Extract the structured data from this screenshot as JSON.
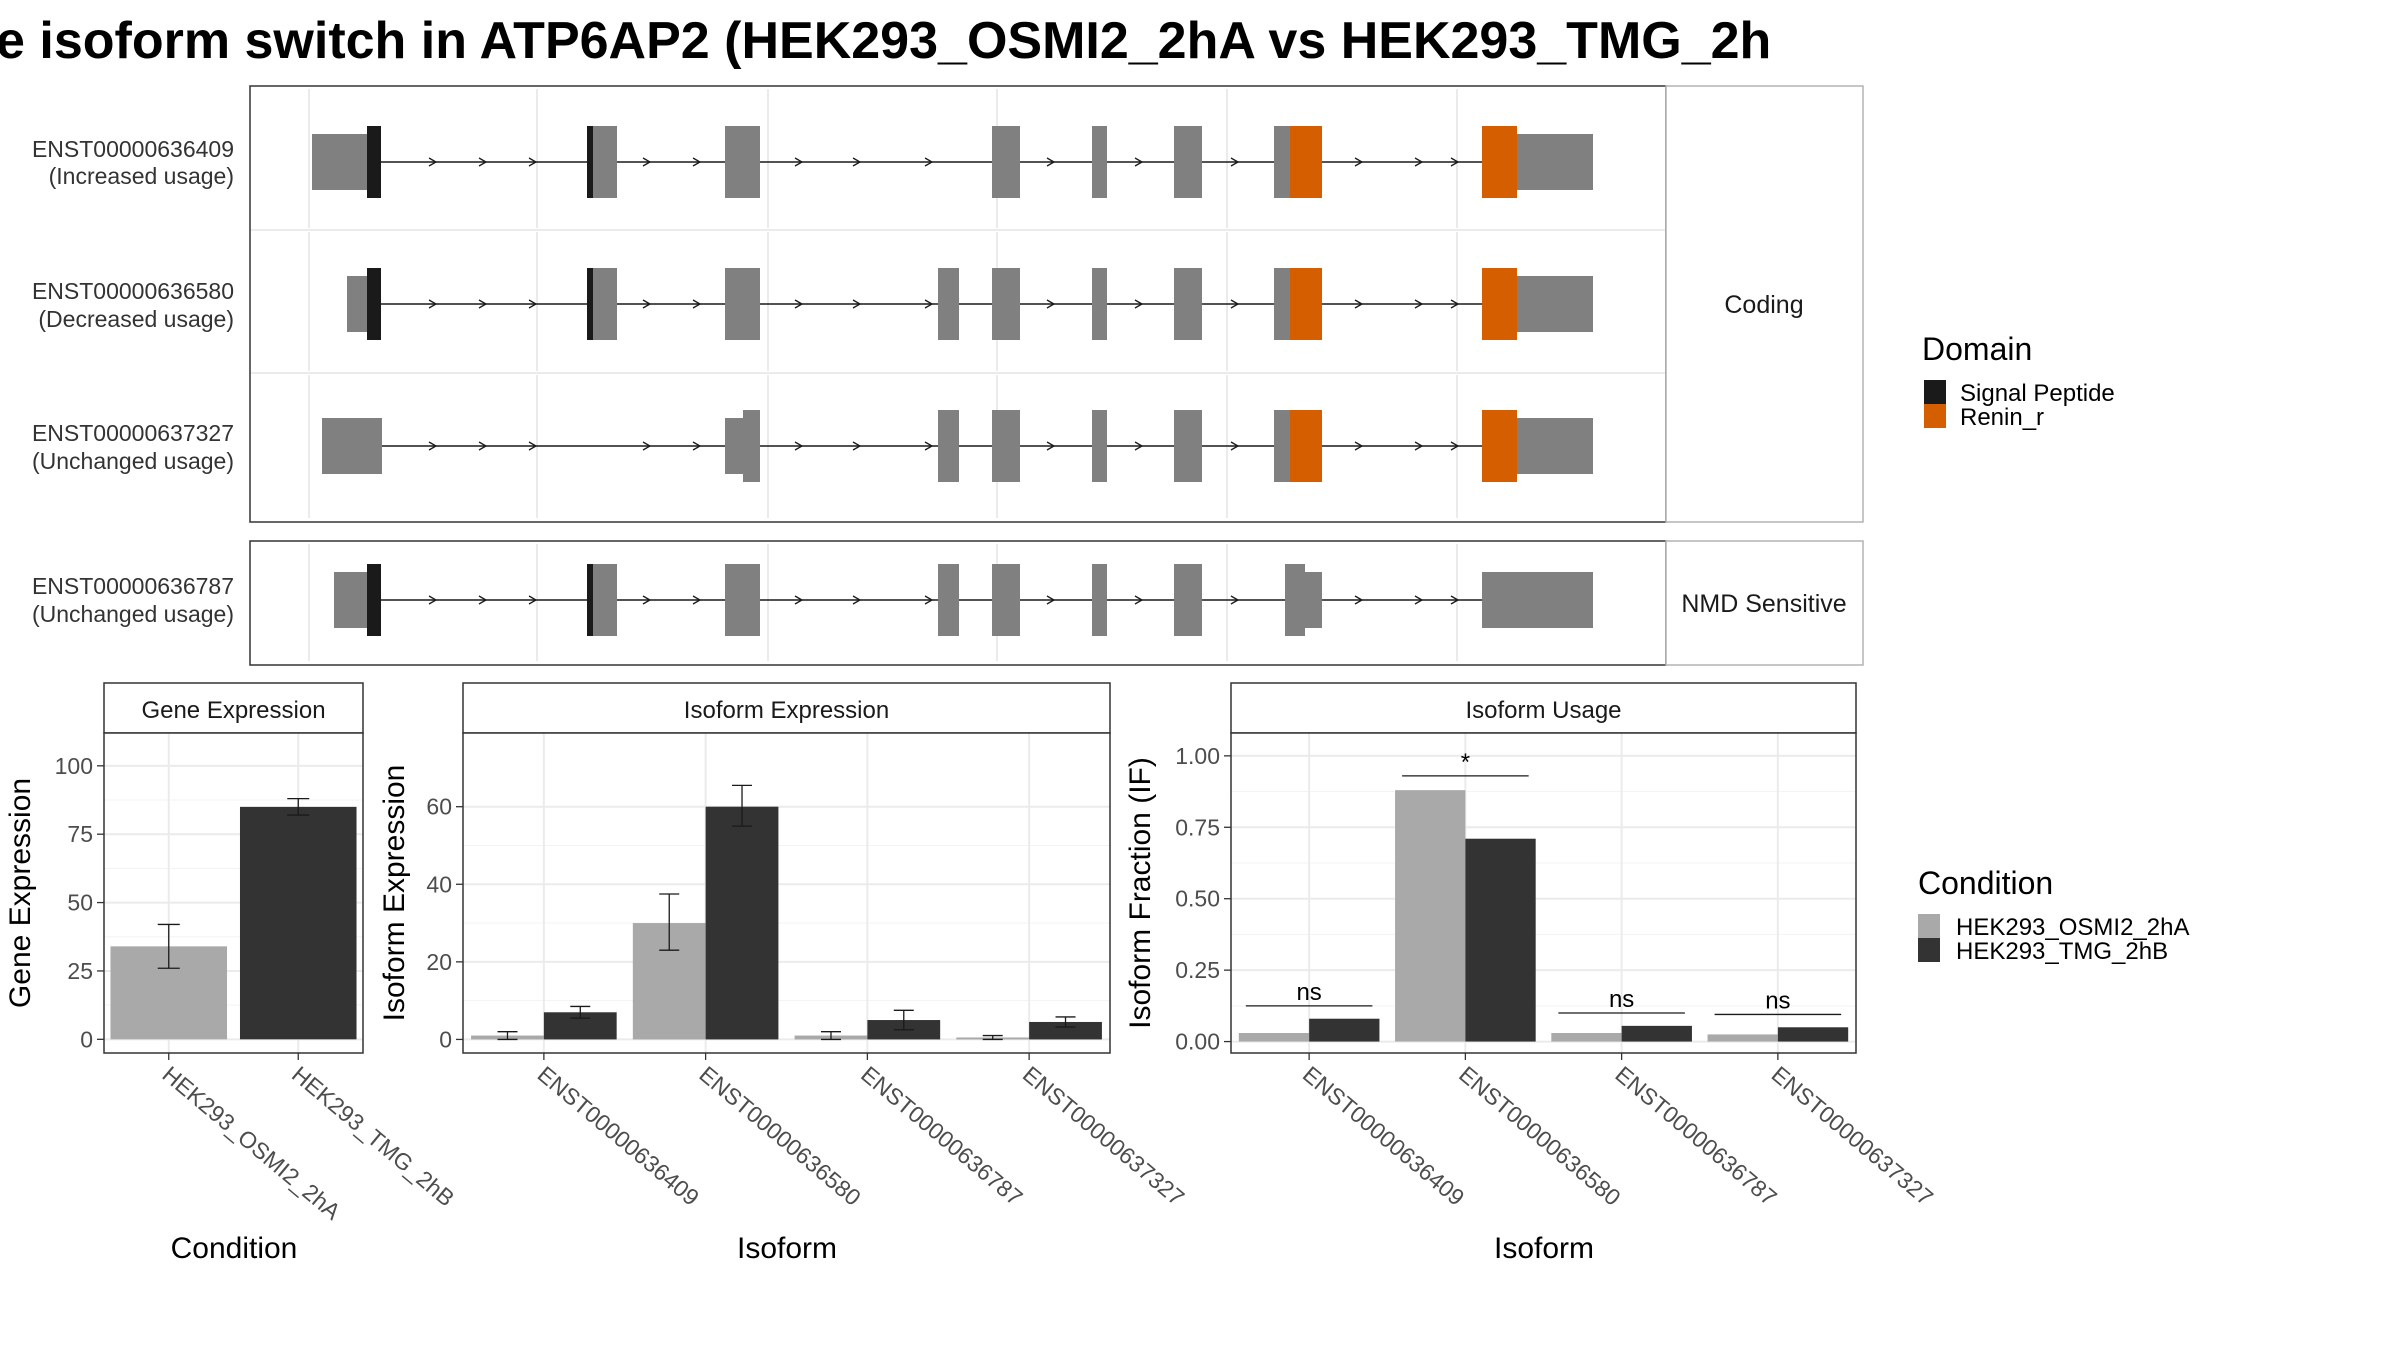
{
  "title": "e isoform switch in ATP6AP2 (HEK293_OSMI2_2hA vs HEK293_TMG_2h",
  "colors": {
    "signal_peptide": "#1a1a1a",
    "renin_r": "#D55E00",
    "exon": "#808080",
    "cond_a": "#a9a9a9",
    "cond_b": "#333333"
  },
  "transcripts": {
    "facets": [
      "Coding",
      "NMD Sensitive"
    ],
    "rows": [
      {
        "id": "ENST00000636409",
        "usage": "(Increased usage)",
        "facet": 0
      },
      {
        "id": "ENST00000636580",
        "usage": "(Decreased usage)",
        "facet": 0
      },
      {
        "id": "ENST00000637327",
        "usage": "(Unchanged usage)",
        "facet": 0
      },
      {
        "id": "ENST00000636787",
        "usage": "(Unchanged usage)",
        "facet": 1
      }
    ]
  },
  "domain_legend": {
    "title": "Domain",
    "items": [
      {
        "label": "Signal Peptide",
        "color": "#1a1a1a"
      },
      {
        "label": "Renin_r",
        "color": "#D55E00"
      }
    ]
  },
  "condition_legend": {
    "title": "Condition",
    "items": [
      {
        "label": "HEK293_OSMI2_2hA",
        "color": "#a9a9a9"
      },
      {
        "label": "HEK293_TMG_2hB",
        "color": "#333333"
      }
    ]
  },
  "chart_data": [
    {
      "type": "bar",
      "title": "Gene Expression",
      "xlabel": "Condition",
      "ylabel": "Gene Expression",
      "categories": [
        "HEK293_OSMI2_2hA",
        "HEK293_TMG_2hB"
      ],
      "values": [
        34,
        85
      ],
      "errors": [
        [
          26,
          42
        ],
        [
          82,
          88
        ]
      ],
      "ylim": [
        -5,
        112
      ],
      "yticks": [
        0,
        25,
        50,
        75,
        100
      ],
      "ytick_labels": [
        "0",
        "25",
        "50",
        "75",
        "100"
      ]
    },
    {
      "type": "bar",
      "title": "Isoform Expression",
      "xlabel": "Isoform",
      "ylabel": "Isoform Expression",
      "categories": [
        "ENST00000636409",
        "ENST00000636580",
        "ENST00000636787",
        "ENST00000637327"
      ],
      "series": [
        {
          "name": "HEK293_OSMI2_2hA",
          "values": [
            1,
            30,
            1,
            0.5
          ],
          "errors": [
            [
              0,
              2
            ],
            [
              23,
              37.5
            ],
            [
              0,
              2
            ],
            [
              0,
              1
            ]
          ]
        },
        {
          "name": "HEK293_TMG_2hB",
          "values": [
            7,
            60,
            5,
            4.5
          ],
          "errors": [
            [
              5.5,
              8.5
            ],
            [
              55,
              65.5
            ],
            [
              2.5,
              7.5
            ],
            [
              3.2,
              5.8
            ]
          ]
        }
      ],
      "ylim": [
        -3.5,
        79
      ],
      "yticks": [
        0,
        20,
        40,
        60
      ],
      "ytick_labels": [
        "0",
        "20",
        "40",
        "60"
      ]
    },
    {
      "type": "bar",
      "title": "Isoform Usage",
      "xlabel": "Isoform",
      "ylabel": "Isoform Fraction (IF)",
      "categories": [
        "ENST00000636409",
        "ENST00000636580",
        "ENST00000636787",
        "ENST00000637327"
      ],
      "series": [
        {
          "name": "HEK293_OSMI2_2hA",
          "values": [
            0.03,
            0.88,
            0.03,
            0.025
          ]
        },
        {
          "name": "HEK293_TMG_2hB",
          "values": [
            0.08,
            0.71,
            0.055,
            0.05
          ]
        }
      ],
      "significance": [
        "ns",
        "*",
        "ns",
        "ns"
      ],
      "sig_y": [
        0.125,
        0.93,
        0.1,
        0.095
      ],
      "ylim": [
        -0.04,
        1.08
      ],
      "yticks": [
        0,
        0.25,
        0.5,
        0.75,
        1.0
      ],
      "ytick_labels": [
        "0.00",
        "0.25",
        "0.50",
        "0.75",
        "1.00"
      ]
    }
  ]
}
